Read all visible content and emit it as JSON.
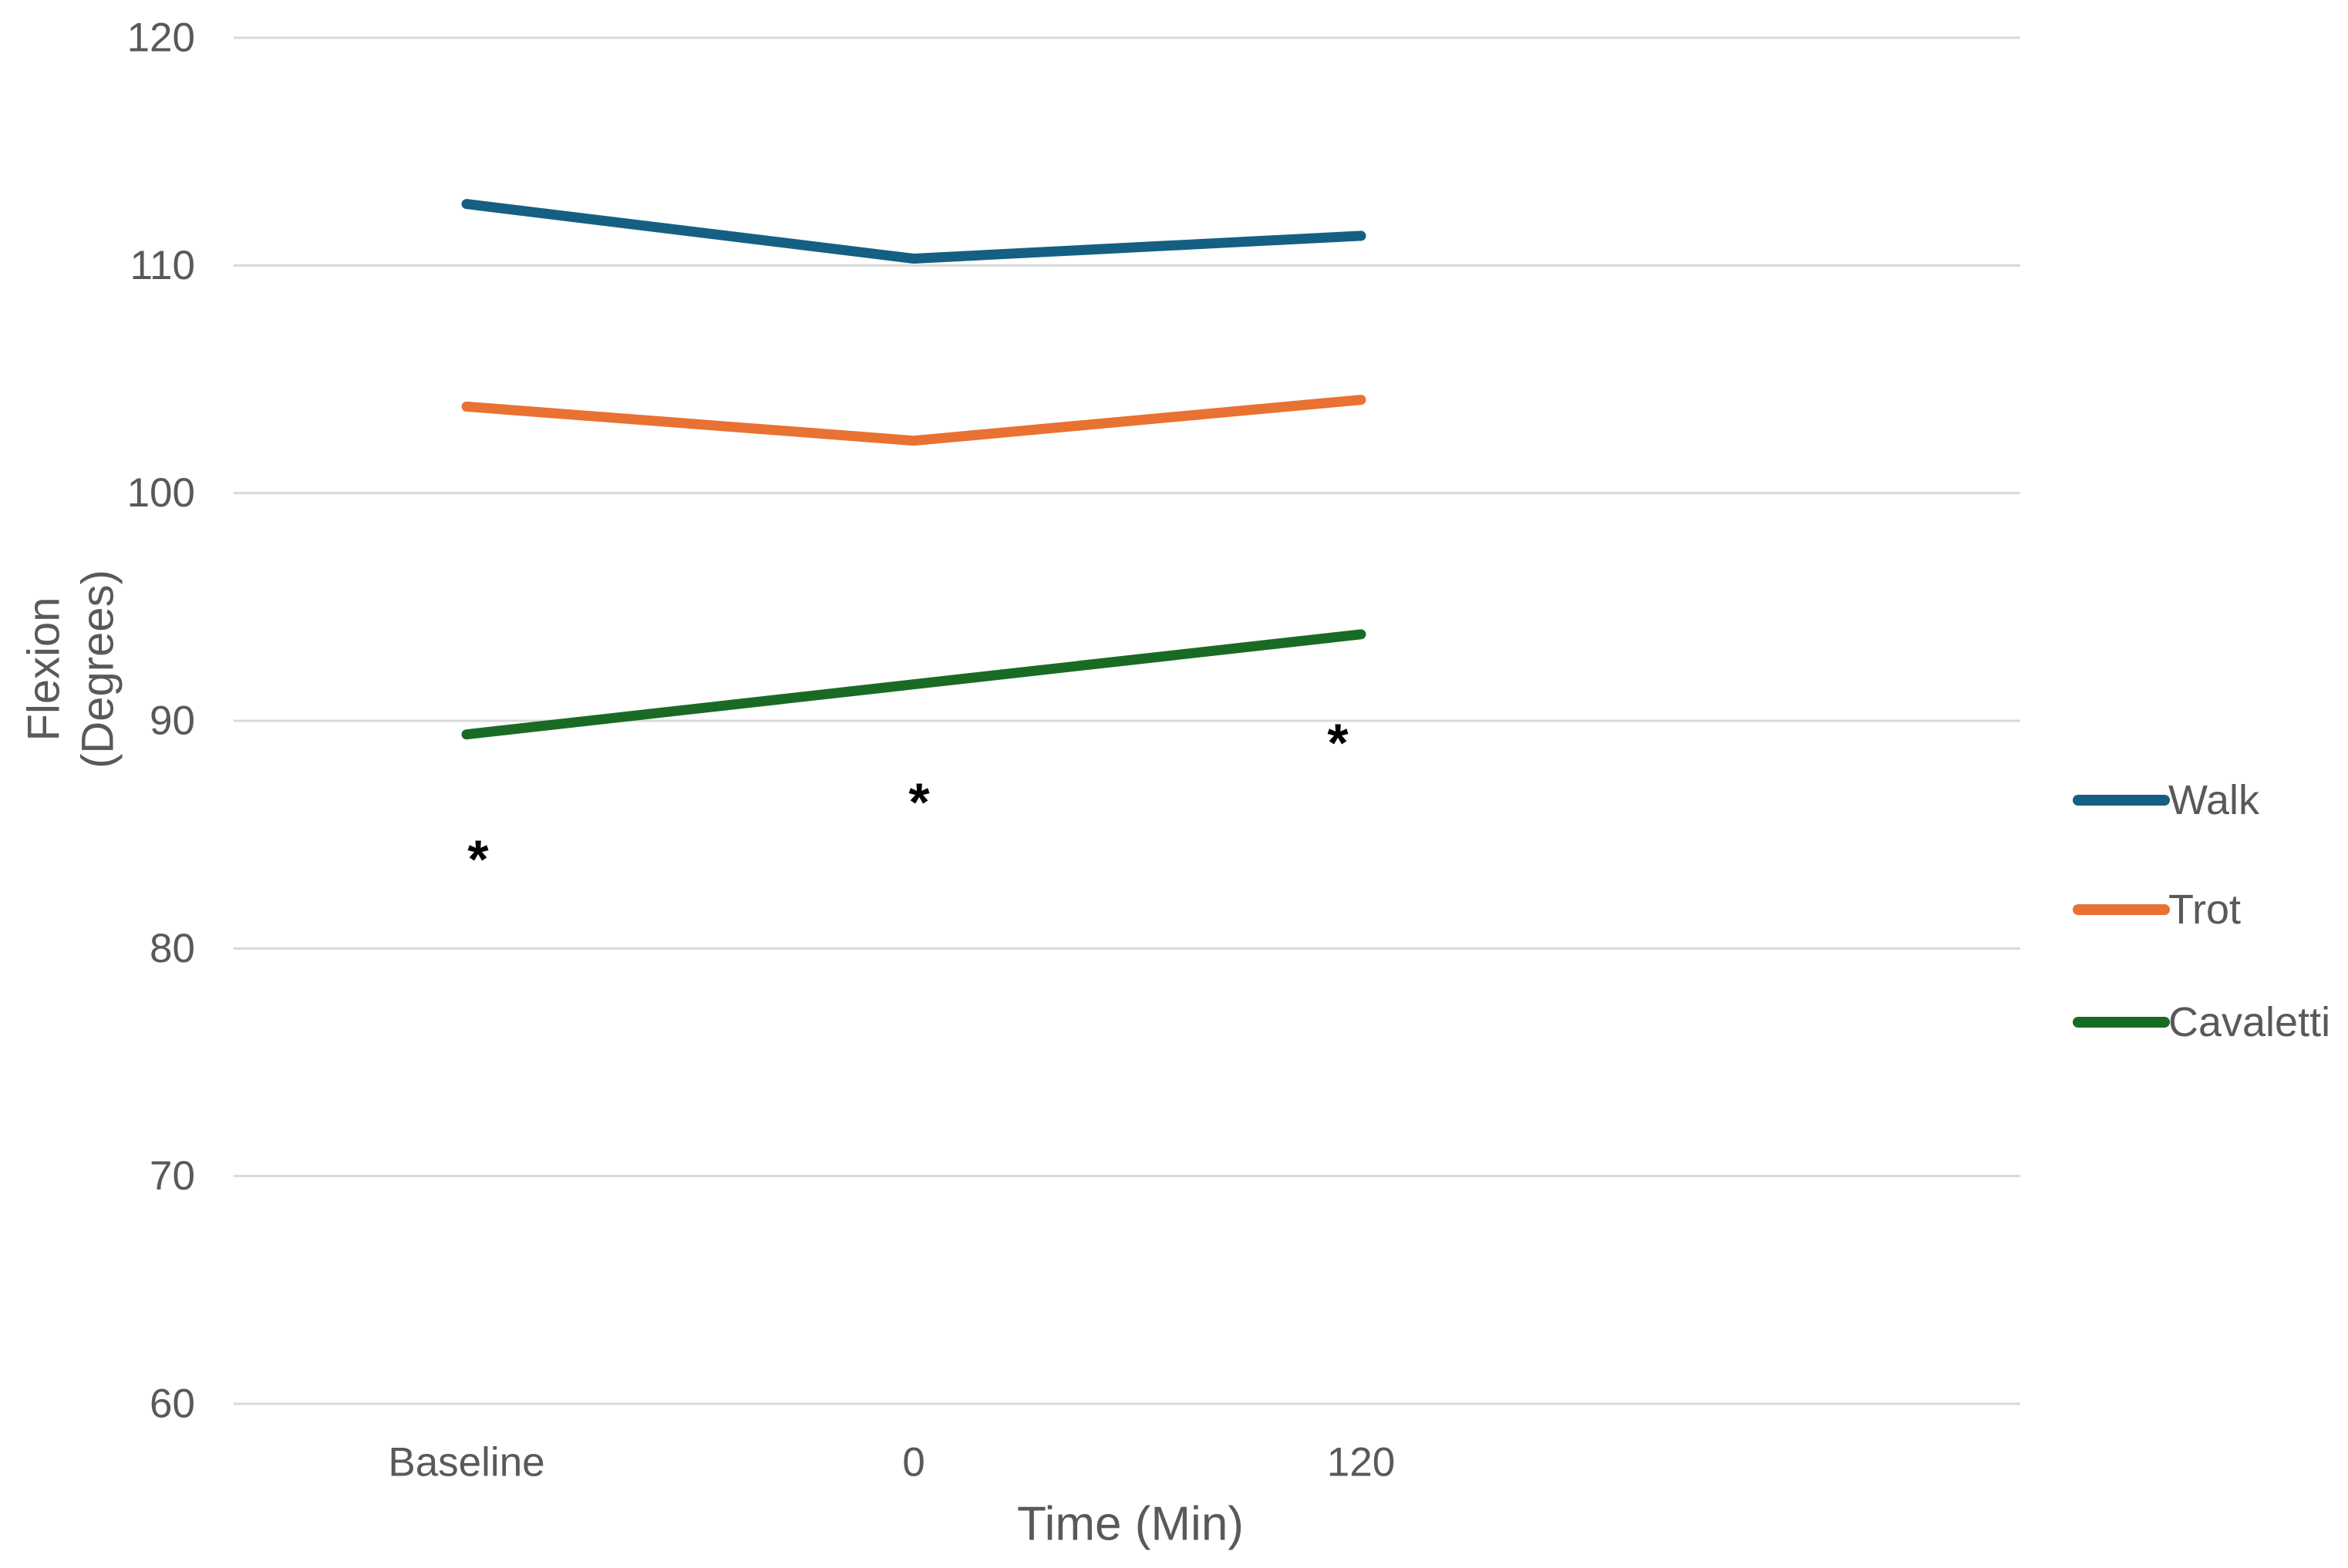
{
  "chart_data": {
    "type": "line",
    "title": "",
    "categories": [
      "Baseline",
      "0",
      "120"
    ],
    "series": [
      {
        "name": "Walk",
        "color": "#156082",
        "values": [
          112.7,
          110.3,
          111.3
        ]
      },
      {
        "name": "Trot",
        "color": "#E97132",
        "values": [
          103.8,
          102.3,
          104.1
        ]
      },
      {
        "name": "Cavaletti",
        "color": "#196B24",
        "values": [
          89.4,
          91.6,
          93.8
        ]
      }
    ],
    "annotations": [
      {
        "symbol": "*",
        "category": "Baseline",
        "value": 84.3
      },
      {
        "symbol": "*",
        "category": "0",
        "value": 86.8
      },
      {
        "symbol": "*",
        "category": "120",
        "value": 89.4
      }
    ],
    "xlabel": "Time (Min)",
    "ylabel": "Flexion (Degrees)",
    "ylabel_lines": [
      "Flexion",
      "(Degrees)"
    ],
    "ylim": [
      60,
      120
    ],
    "yticks": [
      120,
      110,
      100,
      90,
      80,
      70,
      60
    ],
    "grid": "horizontal-only",
    "legend_position": "right"
  },
  "colors": {
    "axis_text": "#595959",
    "gridline": "#D9D9D9",
    "annotation": "#000000",
    "background": "#FFFFFF"
  }
}
